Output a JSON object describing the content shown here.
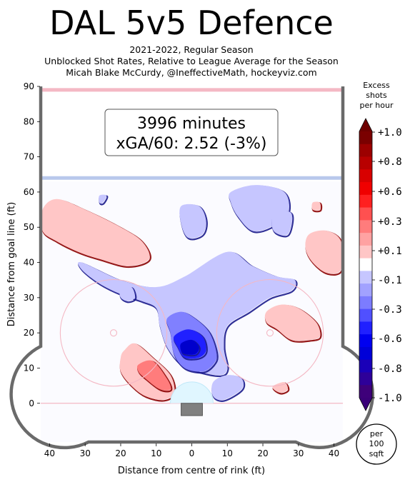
{
  "title": "DAL 5v5 Defence",
  "subtitle_lines": [
    "2021-2022, Regular Season",
    "Unblocked Shot Rates, Relative to League Average for the Season",
    "Micah Blake McCurdy, @IneffectiveMath, hockeyviz.com"
  ],
  "info_box": {
    "minutes": "3996 minutes",
    "xga": "xGA/60: 2.52 (-3%)"
  },
  "colorbar": {
    "title_lines": [
      "Excess",
      "shots",
      "per hour"
    ],
    "tick_labels": [
      "+1.0",
      "+0.8",
      "+0.6",
      "+0.3",
      "+0.1",
      "-0.1",
      "-0.3",
      "-0.6",
      "-0.8",
      "-1.0"
    ],
    "colors": [
      "#7a0000",
      "#9c0000",
      "#b80000",
      "#d80000",
      "#f00000",
      "#ff2020",
      "#ff5050",
      "#ff7c7c",
      "#ffa2a2",
      "#ffc6c6",
      "#ffffff",
      "#c6c6ff",
      "#a2a2ff",
      "#7c7cff",
      "#5050ff",
      "#2020ff",
      "#0000f0",
      "#0000d8",
      "#1a00b8",
      "#2e0099",
      "#3e007a"
    ],
    "unit_lines": [
      "per",
      "100",
      "sqft"
    ]
  },
  "chart_data": {
    "type": "heatmap",
    "title": "DAL 5v5 Defence",
    "xlabel": "Distance from centre of rink (ft)",
    "ylabel": "Distance from goal line (ft)",
    "xlim": [
      -42.5,
      42.5
    ],
    "ylim": [
      -11,
      90
    ],
    "x_ticks": [
      -40,
      -30,
      -20,
      -10,
      0,
      10,
      20,
      30,
      40
    ],
    "x_tick_labels": [
      "40",
      "30",
      "20",
      "10",
      "0",
      "10",
      "20",
      "30",
      "40"
    ],
    "y_ticks": [
      0,
      10,
      20,
      30,
      40,
      50,
      60,
      70,
      80,
      90
    ],
    "y_tick_labels": [
      "0",
      "10",
      "20",
      "30",
      "40",
      "50",
      "60",
      "70",
      "80",
      "90"
    ],
    "value_range": [
      -1.0,
      1.0
    ],
    "regions": [
      {
        "sign": "positive",
        "level": 0.1,
        "x": [
          -42,
          -38,
          -30,
          -20,
          -14,
          -12,
          -18,
          -26,
          -32,
          -38,
          -42
        ],
        "y": [
          55,
          58,
          55,
          50,
          46,
          41,
          39,
          41,
          43,
          46,
          49
        ]
      },
      {
        "sign": "positive",
        "level": 0.1,
        "x": [
          33,
          38,
          42,
          42,
          38,
          34,
          32
        ],
        "y": [
          48,
          49,
          46,
          38,
          37,
          40,
          44
        ]
      },
      {
        "sign": "positive",
        "level": 0.1,
        "x": [
          -19,
          -16,
          -11,
          -6,
          -5,
          -8,
          -13,
          -17,
          -20,
          -20
        ],
        "y": [
          15,
          17,
          13,
          8,
          3,
          1,
          2,
          5,
          9,
          13
        ]
      },
      {
        "sign": "positive",
        "level": 0.3,
        "x": [
          -15,
          -11,
          -7,
          -6,
          -9,
          -13,
          -15
        ],
        "y": [
          11,
          12,
          7,
          4,
          4,
          7,
          9
        ]
      },
      {
        "sign": "positive",
        "level": 0.1,
        "x": [
          21,
          25,
          30,
          35,
          36,
          33,
          28,
          24,
          21
        ],
        "y": [
          26,
          28,
          27,
          23,
          19,
          18,
          18,
          21,
          23
        ]
      },
      {
        "sign": "positive",
        "level": 0.1,
        "x": [
          23,
          26,
          27,
          25,
          23
        ],
        "y": [
          5,
          6,
          4,
          3,
          4
        ]
      },
      {
        "sign": "positive",
        "level": 0.1,
        "x": [
          34,
          36,
          36,
          34
        ],
        "y": [
          57,
          57,
          55,
          55
        ]
      },
      {
        "sign": "negative",
        "level": -0.1,
        "x": [
          11,
          18,
          26,
          27,
          22,
          17,
          13,
          11
        ],
        "y": [
          60,
          62,
          60,
          54,
          50,
          49,
          53,
          57
        ]
      },
      {
        "sign": "negative",
        "level": -0.1,
        "x": [
          -3,
          2,
          4,
          3,
          -1,
          -3
        ],
        "y": [
          56,
          56,
          52,
          48,
          47,
          51
        ]
      },
      {
        "sign": "negative",
        "level": -0.1,
        "x": [
          -26,
          -24,
          -25,
          -26
        ],
        "y": [
          59,
          59,
          57,
          57
        ]
      },
      {
        "sign": "negative",
        "level": -0.1,
        "x": [
          23,
          28,
          27,
          23
        ],
        "y": [
          54,
          54,
          48,
          49
        ]
      },
      {
        "sign": "negative",
        "level": -0.1,
        "x": [
          -31,
          -20,
          -10,
          -2,
          10,
          17,
          24,
          29,
          28,
          22,
          16,
          10,
          9,
          10,
          8,
          2,
          -3,
          -7,
          -9,
          -10,
          -14,
          -20,
          -26,
          -31
        ],
        "y": [
          40,
          35,
          33,
          36,
          43,
          39,
          36,
          35,
          32,
          30,
          26,
          22,
          16,
          10,
          8,
          9,
          11,
          16,
          22,
          27,
          29,
          31,
          34,
          38
        ]
      },
      {
        "sign": "negative",
        "level": -0.3,
        "x": [
          -7,
          -3,
          1,
          5,
          7,
          6,
          3,
          -2,
          -5,
          -6
        ],
        "y": [
          24,
          26,
          24,
          20,
          14,
          11,
          9,
          10,
          14,
          20
        ]
      },
      {
        "sign": "negative",
        "level": -0.6,
        "x": [
          -5,
          -1,
          3,
          4,
          2,
          -2,
          -4
        ],
        "y": [
          19,
          21,
          19,
          15,
          13,
          13,
          16
        ]
      },
      {
        "sign": "negative",
        "level": -0.8,
        "x": [
          -3,
          0,
          2,
          1,
          -2,
          -3
        ],
        "y": [
          17,
          18,
          16,
          14,
          14,
          15
        ]
      },
      {
        "sign": "negative",
        "level": -0.1,
        "x": [
          -20,
          -17,
          -16,
          -18,
          -20
        ],
        "y": [
          32,
          33,
          30,
          29,
          30
        ]
      },
      {
        "sign": "negative",
        "level": -0.1,
        "x": [
          6,
          10,
          14,
          14,
          9,
          6
        ],
        "y": [
          6,
          8,
          7,
          4,
          1,
          2
        ]
      },
      {
        "sign": "negative",
        "level": -0.1,
        "x": [
          -2,
          2,
          4,
          2,
          -2
        ],
        "y": [
          5,
          5,
          3,
          1,
          2
        ]
      }
    ]
  }
}
